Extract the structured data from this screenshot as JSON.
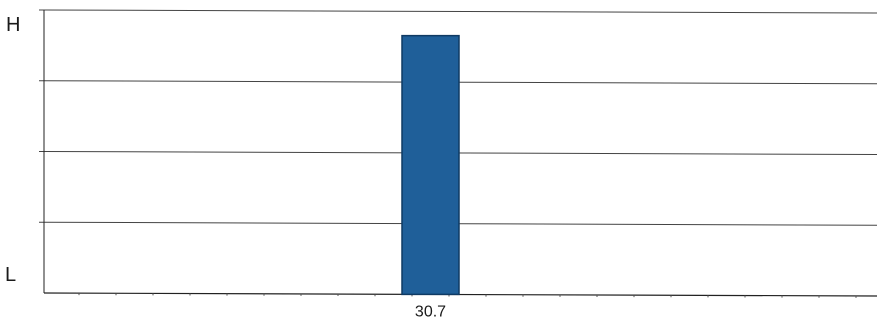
{
  "chart_data": {
    "type": "bar",
    "categories": [
      "30.7"
    ],
    "values": [
      0.92
    ],
    "ylim": [
      0,
      1
    ],
    "y_tick_labels": {
      "top": "H",
      "bottom": "L"
    },
    "grid": true,
    "legend": "none",
    "bar_color": "#1f5f99",
    "bar_edge_color": "#0f3a63",
    "grid_color": "#444444"
  }
}
